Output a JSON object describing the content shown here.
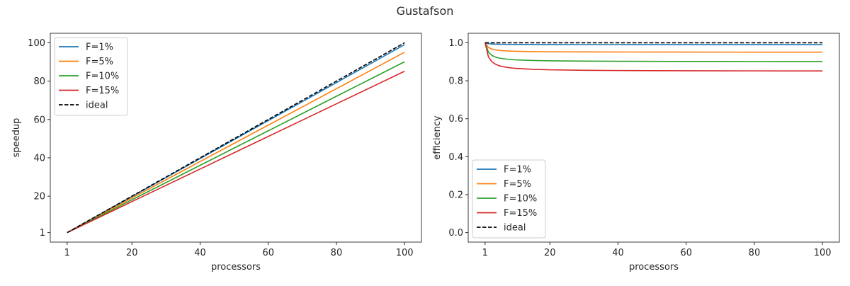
{
  "chart_data": {
    "title": "Gustafson",
    "colors": {
      "F=1%": "#1f77b4",
      "F=5%": "#ff7f0e",
      "F=10%": "#2ca02c",
      "F=15%": "#d62728",
      "ideal": "#000000"
    },
    "charts": [
      {
        "type": "line",
        "xlabel": "processors",
        "ylabel": "speedup",
        "xlim": [
          -3.95,
          104.95
        ],
        "ylim": [
          -3.95,
          104.95
        ],
        "xticks": [
          1,
          20,
          40,
          60,
          80,
          100
        ],
        "yticks": [
          1,
          20,
          40,
          60,
          80,
          100
        ],
        "grid": false,
        "legend": "top-left",
        "x": [
          1,
          2,
          3,
          4,
          5,
          6,
          8,
          10,
          15,
          20,
          30,
          40,
          50,
          60,
          70,
          80,
          90,
          100
        ],
        "series": [
          {
            "name": "F=1%",
            "values": [
              1,
              1.99,
              2.98,
              3.97,
              4.96,
              5.95,
              7.93,
              9.91,
              14.86,
              19.81,
              29.71,
              39.61,
              49.51,
              59.41,
              69.31,
              79.21,
              89.11,
              99.01
            ]
          },
          {
            "name": "F=5%",
            "values": [
              1,
              1.95,
              2.9,
              3.85,
              4.8,
              5.75,
              7.65,
              9.55,
              14.3,
              19.05,
              28.55,
              38.05,
              47.55,
              57.05,
              66.55,
              76.05,
              85.55,
              95.05
            ]
          },
          {
            "name": "F=10%",
            "values": [
              1,
              1.9,
              2.8,
              3.7,
              4.6,
              5.5,
              7.3,
              9.1,
              13.6,
              18.1,
              27.1,
              36.1,
              45.1,
              54.1,
              63.1,
              72.1,
              81.1,
              90.1
            ]
          },
          {
            "name": "F=15%",
            "values": [
              1,
              1.85,
              2.7,
              3.55,
              4.4,
              5.25,
              6.95,
              8.65,
              12.9,
              17.15,
              25.65,
              34.15,
              42.65,
              51.15,
              59.65,
              68.15,
              76.65,
              85.15
            ]
          },
          {
            "name": "ideal",
            "dashed": true,
            "values": [
              1,
              2,
              3,
              4,
              5,
              6,
              8,
              10,
              15,
              20,
              30,
              40,
              50,
              60,
              70,
              80,
              90,
              100
            ]
          }
        ]
      },
      {
        "type": "line",
        "xlabel": "processors",
        "ylabel": "efficiency",
        "xlim": [
          -3.95,
          104.95
        ],
        "ylim": [
          -0.05,
          1.05
        ],
        "xticks": [
          1,
          20,
          40,
          60,
          80,
          100
        ],
        "yticks": [
          0.0,
          0.2,
          0.4,
          0.6,
          0.8,
          1.0
        ],
        "grid": false,
        "legend": "bottom-left",
        "x": [
          1,
          2,
          3,
          4,
          5,
          6,
          8,
          10,
          15,
          20,
          30,
          40,
          50,
          60,
          70,
          80,
          90,
          100
        ],
        "series": [
          {
            "name": "F=1%",
            "values": [
              1,
              0.995,
              0.9933,
              0.9925,
              0.992,
              0.9917,
              0.9913,
              0.991,
              0.9907,
              0.9905,
              0.9903,
              0.9903,
              0.9902,
              0.9902,
              0.9901,
              0.9901,
              0.9901,
              0.9901
            ]
          },
          {
            "name": "F=5%",
            "values": [
              1,
              0.975,
              0.9667,
              0.9625,
              0.96,
              0.9583,
              0.9563,
              0.955,
              0.9533,
              0.9525,
              0.9517,
              0.9513,
              0.951,
              0.9508,
              0.9507,
              0.9506,
              0.9506,
              0.9505
            ]
          },
          {
            "name": "F=10%",
            "values": [
              1,
              0.95,
              0.9333,
              0.925,
              0.92,
              0.9167,
              0.9125,
              0.91,
              0.9067,
              0.905,
              0.9033,
              0.9025,
              0.902,
              0.9017,
              0.9014,
              0.9013,
              0.9011,
              0.901
            ]
          },
          {
            "name": "F=15%",
            "values": [
              1,
              0.925,
              0.9,
              0.8875,
              0.88,
              0.875,
              0.8688,
              0.865,
              0.86,
              0.8575,
              0.855,
              0.8538,
              0.853,
              0.8525,
              0.8521,
              0.8519,
              0.8517,
              0.8515
            ]
          },
          {
            "name": "ideal",
            "dashed": true,
            "values": [
              1,
              1,
              1,
              1,
              1,
              1,
              1,
              1,
              1,
              1,
              1,
              1,
              1,
              1,
              1,
              1,
              1,
              1
            ]
          }
        ]
      }
    ]
  }
}
